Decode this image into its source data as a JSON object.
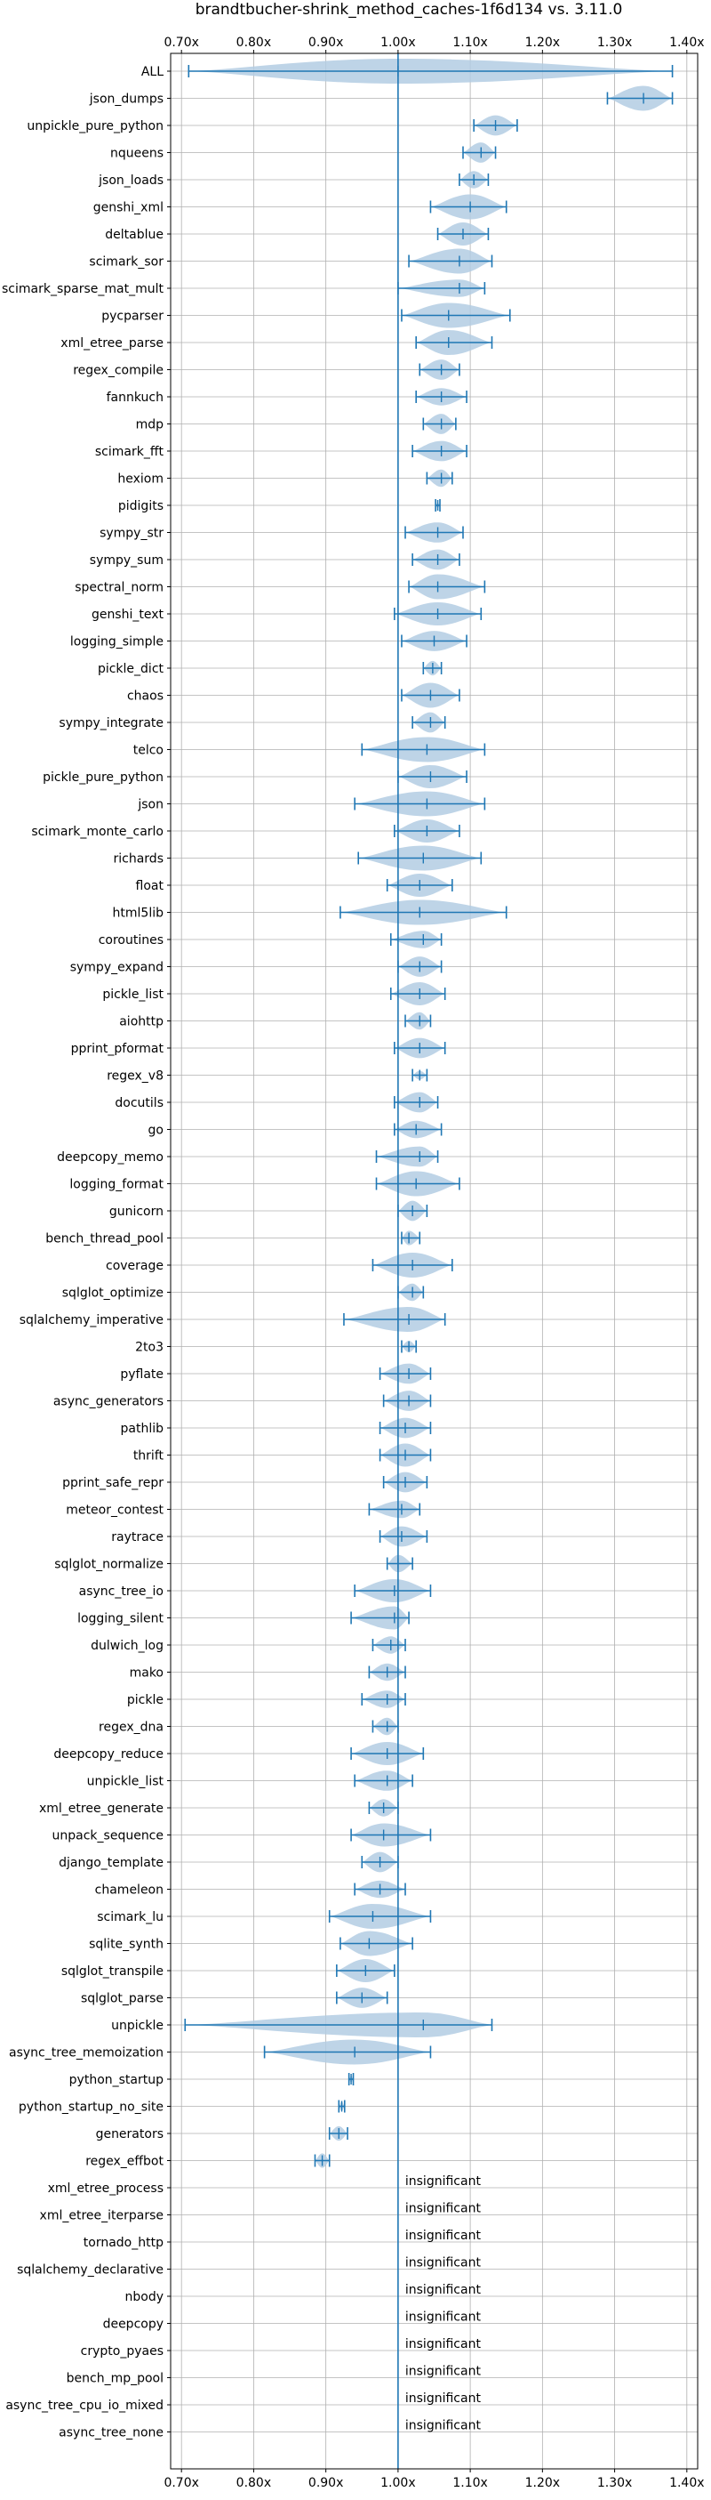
{
  "chart_data": {
    "type": "violin",
    "title": "brandtbucher-shrink_method_caches-1f6d134 vs. 3.11.0",
    "xlim": [
      0.685,
      1.415
    ],
    "x_ticks": [
      0.7,
      0.8,
      0.9,
      1.0,
      1.1,
      1.2,
      1.3,
      1.4
    ],
    "x_tick_labels": [
      "0.70x",
      "0.80x",
      "0.90x",
      "1.00x",
      "1.10x",
      "1.20x",
      "1.30x",
      "1.40x"
    ],
    "reference_line": 1.0,
    "grid": true,
    "colors": {
      "accent": "#1f77b4",
      "violin_fill": "#b3cde3",
      "grid": "#b0b0b0"
    },
    "insignificant_label": "insignificant",
    "benchmarks": [
      {
        "name": "ALL",
        "min": 0.71,
        "max": 1.38,
        "mean": 1.0,
        "median": 1.0,
        "width": 0.06
      },
      {
        "name": "json_dumps",
        "min": 1.29,
        "max": 1.38,
        "mean": 1.34,
        "median": 1.34,
        "width": 0.07
      },
      {
        "name": "unpickle_pure_python",
        "min": 1.105,
        "max": 1.165,
        "mean": 1.135,
        "median": 1.135,
        "width": 0.035
      },
      {
        "name": "nqueens",
        "min": 1.09,
        "max": 1.135,
        "mean": 1.115,
        "median": 1.115,
        "width": 0.035
      },
      {
        "name": "json_loads",
        "min": 1.085,
        "max": 1.125,
        "mean": 1.105,
        "median": 1.105,
        "width": 0.03
      },
      {
        "name": "genshi_xml",
        "min": 1.045,
        "max": 1.15,
        "mean": 1.1,
        "median": 1.1,
        "width": 0.045
      },
      {
        "name": "deltablue",
        "min": 1.055,
        "max": 1.125,
        "mean": 1.09,
        "median": 1.09,
        "width": 0.04
      },
      {
        "name": "scimark_sor",
        "min": 1.015,
        "max": 1.13,
        "mean": 1.085,
        "median": 1.085,
        "width": 0.045
      },
      {
        "name": "scimark_sparse_mat_mult",
        "min": 1.0,
        "max": 1.12,
        "mean": 1.085,
        "median": 1.085,
        "width": 0.03
      },
      {
        "name": "pycparser",
        "min": 1.005,
        "max": 1.155,
        "mean": 1.07,
        "median": 1.07,
        "width": 0.065
      },
      {
        "name": "xml_etree_parse",
        "min": 1.025,
        "max": 1.13,
        "mean": 1.07,
        "median": 1.07,
        "width": 0.05
      },
      {
        "name": "regex_compile",
        "min": 1.03,
        "max": 1.085,
        "mean": 1.06,
        "median": 1.06,
        "width": 0.035
      },
      {
        "name": "fannkuch",
        "min": 1.025,
        "max": 1.095,
        "mean": 1.06,
        "median": 1.06,
        "width": 0.03
      },
      {
        "name": "mdp",
        "min": 1.035,
        "max": 1.08,
        "mean": 1.06,
        "median": 1.06,
        "width": 0.035
      },
      {
        "name": "scimark_fft",
        "min": 1.02,
        "max": 1.095,
        "mean": 1.06,
        "median": 1.06,
        "width": 0.035
      },
      {
        "name": "hexiom",
        "min": 1.04,
        "max": 1.075,
        "mean": 1.06,
        "median": 1.06,
        "width": 0.03
      },
      {
        "name": "pidigits",
        "min": 1.052,
        "max": 1.058,
        "mean": 1.055,
        "median": 1.055,
        "width": 0.008
      },
      {
        "name": "sympy_str",
        "min": 1.01,
        "max": 1.09,
        "mean": 1.055,
        "median": 1.055,
        "width": 0.035
      },
      {
        "name": "sympy_sum",
        "min": 1.02,
        "max": 1.085,
        "mean": 1.055,
        "median": 1.055,
        "width": 0.035
      },
      {
        "name": "spectral_norm",
        "min": 1.015,
        "max": 1.12,
        "mean": 1.055,
        "median": 1.055,
        "width": 0.045
      },
      {
        "name": "genshi_text",
        "min": 0.995,
        "max": 1.115,
        "mean": 1.055,
        "median": 1.055,
        "width": 0.04
      },
      {
        "name": "logging_simple",
        "min": 1.005,
        "max": 1.095,
        "mean": 1.05,
        "median": 1.05,
        "width": 0.035
      },
      {
        "name": "pickle_dict",
        "min": 1.035,
        "max": 1.06,
        "mean": 1.048,
        "median": 1.048,
        "width": 0.025
      },
      {
        "name": "chaos",
        "min": 1.005,
        "max": 1.085,
        "mean": 1.045,
        "median": 1.045,
        "width": 0.045
      },
      {
        "name": "sympy_integrate",
        "min": 1.02,
        "max": 1.065,
        "mean": 1.045,
        "median": 1.045,
        "width": 0.035
      },
      {
        "name": "telco",
        "min": 0.95,
        "max": 1.12,
        "mean": 1.04,
        "median": 1.04,
        "width": 0.065
      },
      {
        "name": "pickle_pure_python",
        "min": 1.0,
        "max": 1.095,
        "mean": 1.045,
        "median": 1.045,
        "width": 0.04
      },
      {
        "name": "json",
        "min": 0.94,
        "max": 1.12,
        "mean": 1.04,
        "median": 1.04,
        "width": 0.055
      },
      {
        "name": "scimark_monte_carlo",
        "min": 0.995,
        "max": 1.085,
        "mean": 1.04,
        "median": 1.04,
        "width": 0.04
      },
      {
        "name": "richards",
        "min": 0.945,
        "max": 1.115,
        "mean": 1.035,
        "median": 1.035,
        "width": 0.055
      },
      {
        "name": "float",
        "min": 0.985,
        "max": 1.075,
        "mean": 1.03,
        "median": 1.03,
        "width": 0.04
      },
      {
        "name": "html5lib",
        "min": 0.92,
        "max": 1.15,
        "mean": 1.03,
        "median": 1.03,
        "width": 0.06
      },
      {
        "name": "coroutines",
        "min": 0.99,
        "max": 1.06,
        "mean": 1.035,
        "median": 1.035,
        "width": 0.03
      },
      {
        "name": "sympy_expand",
        "min": 1.0,
        "max": 1.06,
        "mean": 1.03,
        "median": 1.03,
        "width": 0.035
      },
      {
        "name": "pickle_list",
        "min": 0.99,
        "max": 1.065,
        "mean": 1.03,
        "median": 1.03,
        "width": 0.04
      },
      {
        "name": "aiohttp",
        "min": 1.01,
        "max": 1.045,
        "mean": 1.03,
        "median": 1.03,
        "width": 0.03
      },
      {
        "name": "pprint_pformat",
        "min": 0.995,
        "max": 1.065,
        "mean": 1.03,
        "median": 1.03,
        "width": 0.035
      },
      {
        "name": "regex_v8",
        "min": 1.02,
        "max": 1.04,
        "mean": 1.03,
        "median": 1.03,
        "width": 0.015
      },
      {
        "name": "docutils",
        "min": 0.995,
        "max": 1.055,
        "mean": 1.03,
        "median": 1.03,
        "width": 0.035
      },
      {
        "name": "go",
        "min": 0.995,
        "max": 1.06,
        "mean": 1.025,
        "median": 1.025,
        "width": 0.03
      },
      {
        "name": "deepcopy_memo",
        "min": 0.97,
        "max": 1.055,
        "mean": 1.03,
        "median": 1.03,
        "width": 0.035
      },
      {
        "name": "logging_format",
        "min": 0.97,
        "max": 1.085,
        "mean": 1.025,
        "median": 1.025,
        "width": 0.045
      },
      {
        "name": "gunicorn",
        "min": 1.0,
        "max": 1.04,
        "mean": 1.02,
        "median": 1.02,
        "width": 0.035
      },
      {
        "name": "bench_thread_pool",
        "min": 1.005,
        "max": 1.03,
        "mean": 1.015,
        "median": 1.015,
        "width": 0.025
      },
      {
        "name": "coverage",
        "min": 0.965,
        "max": 1.075,
        "mean": 1.02,
        "median": 1.02,
        "width": 0.045
      },
      {
        "name": "sqlglot_optimize",
        "min": 1.0,
        "max": 1.035,
        "mean": 1.02,
        "median": 1.02,
        "width": 0.03
      },
      {
        "name": "sqlalchemy_imperative",
        "min": 0.925,
        "max": 1.065,
        "mean": 1.015,
        "median": 1.015,
        "width": 0.045
      },
      {
        "name": "2to3",
        "min": 1.005,
        "max": 1.025,
        "mean": 1.015,
        "median": 1.015,
        "width": 0.02
      },
      {
        "name": "pyflate",
        "min": 0.975,
        "max": 1.045,
        "mean": 1.015,
        "median": 1.015,
        "width": 0.035
      },
      {
        "name": "async_generators",
        "min": 0.98,
        "max": 1.045,
        "mean": 1.015,
        "median": 1.015,
        "width": 0.035
      },
      {
        "name": "pathlib",
        "min": 0.975,
        "max": 1.045,
        "mean": 1.01,
        "median": 1.01,
        "width": 0.035
      },
      {
        "name": "thrift",
        "min": 0.975,
        "max": 1.045,
        "mean": 1.01,
        "median": 1.01,
        "width": 0.04
      },
      {
        "name": "pprint_safe_repr",
        "min": 0.98,
        "max": 1.04,
        "mean": 1.01,
        "median": 1.01,
        "width": 0.035
      },
      {
        "name": "meteor_contest",
        "min": 0.96,
        "max": 1.03,
        "mean": 1.005,
        "median": 1.005,
        "width": 0.03
      },
      {
        "name": "raytrace",
        "min": 0.975,
        "max": 1.04,
        "mean": 1.005,
        "median": 1.005,
        "width": 0.035
      },
      {
        "name": "sqlglot_normalize",
        "min": 0.985,
        "max": 1.02,
        "mean": 1.0,
        "median": 1.0,
        "width": 0.03
      },
      {
        "name": "async_tree_io",
        "min": 0.94,
        "max": 1.045,
        "mean": 0.995,
        "median": 0.995,
        "width": 0.04
      },
      {
        "name": "logging_silent",
        "min": 0.935,
        "max": 1.015,
        "mean": 0.995,
        "median": 0.995,
        "width": 0.04
      },
      {
        "name": "dulwich_log",
        "min": 0.965,
        "max": 1.01,
        "mean": 0.99,
        "median": 0.99,
        "width": 0.03
      },
      {
        "name": "mako",
        "min": 0.96,
        "max": 1.01,
        "mean": 0.985,
        "median": 0.985,
        "width": 0.03
      },
      {
        "name": "pickle",
        "min": 0.95,
        "max": 1.01,
        "mean": 0.985,
        "median": 0.985,
        "width": 0.03
      },
      {
        "name": "regex_dna",
        "min": 0.965,
        "max": 1.0,
        "mean": 0.985,
        "median": 0.985,
        "width": 0.03
      },
      {
        "name": "deepcopy_reduce",
        "min": 0.935,
        "max": 1.035,
        "mean": 0.985,
        "median": 0.985,
        "width": 0.04
      },
      {
        "name": "unpickle_list",
        "min": 0.94,
        "max": 1.02,
        "mean": 0.985,
        "median": 0.985,
        "width": 0.035
      },
      {
        "name": "xml_etree_generate",
        "min": 0.96,
        "max": 1.0,
        "mean": 0.98,
        "median": 0.98,
        "width": 0.03
      },
      {
        "name": "unpack_sequence",
        "min": 0.935,
        "max": 1.045,
        "mean": 0.98,
        "median": 0.98,
        "width": 0.04
      },
      {
        "name": "django_template",
        "min": 0.95,
        "max": 1.0,
        "mean": 0.975,
        "median": 0.975,
        "width": 0.035
      },
      {
        "name": "chameleon",
        "min": 0.94,
        "max": 1.01,
        "mean": 0.975,
        "median": 0.975,
        "width": 0.03
      },
      {
        "name": "scimark_lu",
        "min": 0.905,
        "max": 1.045,
        "mean": 0.965,
        "median": 0.965,
        "width": 0.05
      },
      {
        "name": "sqlite_synth",
        "min": 0.92,
        "max": 1.02,
        "mean": 0.96,
        "median": 0.96,
        "width": 0.045
      },
      {
        "name": "sqlglot_transpile",
        "min": 0.915,
        "max": 0.995,
        "mean": 0.955,
        "median": 0.955,
        "width": 0.04
      },
      {
        "name": "sqlglot_parse",
        "min": 0.915,
        "max": 0.985,
        "mean": 0.95,
        "median": 0.95,
        "width": 0.035
      },
      {
        "name": "unpickle",
        "min": 0.705,
        "max": 1.13,
        "mean": 1.035,
        "median": 1.035,
        "width": 0.06
      },
      {
        "name": "async_tree_memoization",
        "min": 0.815,
        "max": 1.045,
        "mean": 0.94,
        "median": 0.94,
        "width": 0.05
      },
      {
        "name": "python_startup",
        "min": 0.932,
        "max": 0.938,
        "mean": 0.935,
        "median": 0.935,
        "width": 0.012
      },
      {
        "name": "python_startup_no_site",
        "min": 0.918,
        "max": 0.926,
        "mean": 0.922,
        "median": 0.922,
        "width": 0.015
      },
      {
        "name": "generators",
        "min": 0.905,
        "max": 0.93,
        "mean": 0.918,
        "median": 0.918,
        "width": 0.025
      },
      {
        "name": "regex_effbot",
        "min": 0.885,
        "max": 0.905,
        "mean": 0.895,
        "median": 0.895,
        "width": 0.025
      },
      {
        "name": "xml_etree_process",
        "insignificant": true
      },
      {
        "name": "xml_etree_iterparse",
        "insignificant": true
      },
      {
        "name": "tornado_http",
        "insignificant": true
      },
      {
        "name": "sqlalchemy_declarative",
        "insignificant": true
      },
      {
        "name": "nbody",
        "insignificant": true
      },
      {
        "name": "deepcopy",
        "insignificant": true
      },
      {
        "name": "crypto_pyaes",
        "insignificant": true
      },
      {
        "name": "bench_mp_pool",
        "insignificant": true
      },
      {
        "name": "async_tree_cpu_io_mixed",
        "insignificant": true
      },
      {
        "name": "async_tree_none",
        "insignificant": true
      }
    ]
  }
}
